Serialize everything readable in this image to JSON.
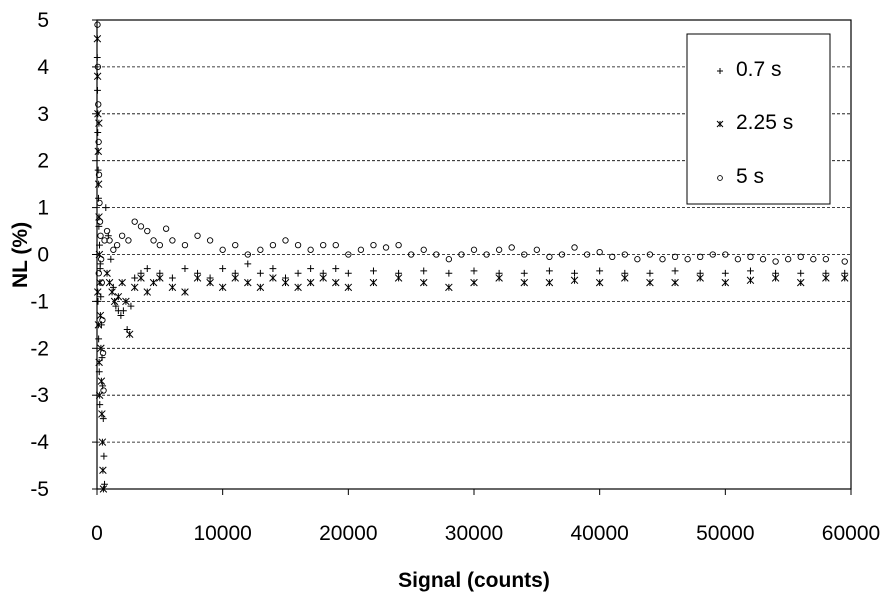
{
  "chart_data": {
    "type": "scatter",
    "title": "",
    "xlabel": "Signal (counts)",
    "ylabel": "NL (%)",
    "xlim": [
      0,
      60000
    ],
    "ylim": [
      -5,
      5
    ],
    "x_ticks": [
      "0",
      "10000",
      "20000",
      "30000",
      "40000",
      "50000",
      "60000"
    ],
    "y_ticks": [
      "5",
      "4",
      "3",
      "2",
      "1",
      "0",
      "-1",
      "-2",
      "-3",
      "-4",
      "-5"
    ],
    "grid": "horizontal dashed",
    "legend_position": "top-right",
    "series": [
      {
        "name": "0.7 s",
        "marker": "plus",
        "points": [
          [
            20,
            4.2
          ],
          [
            40,
            3.5
          ],
          [
            60,
            2.6
          ],
          [
            90,
            1.8
          ],
          [
            120,
            1.2
          ],
          [
            150,
            0.6
          ],
          [
            200,
            0.2
          ],
          [
            250,
            -0.3
          ],
          [
            300,
            -0.9
          ],
          [
            350,
            -1.5
          ],
          [
            400,
            -2.2
          ],
          [
            450,
            -2.8
          ],
          [
            500,
            -3.5
          ],
          [
            550,
            -4.3
          ],
          [
            600,
            -4.9
          ],
          [
            80,
            -1.0
          ],
          [
            130,
            -1.8
          ],
          [
            180,
            -2.5
          ],
          [
            220,
            -3.2
          ],
          [
            260,
            -0.2
          ],
          [
            700,
            1.0
          ],
          [
            900,
            0.4
          ],
          [
            1100,
            -0.1
          ],
          [
            1300,
            -0.7
          ],
          [
            1500,
            -1.1
          ],
          [
            1700,
            -1.2
          ],
          [
            1900,
            -1.3
          ],
          [
            2100,
            -1.2
          ],
          [
            2400,
            -1.6
          ],
          [
            2700,
            -1.1
          ],
          [
            3000,
            -0.5
          ],
          [
            3500,
            -0.4
          ],
          [
            4000,
            -0.3
          ],
          [
            5000,
            -0.4
          ],
          [
            6000,
            -0.5
          ],
          [
            7000,
            -0.3
          ],
          [
            8000,
            -0.4
          ],
          [
            9000,
            -0.5
          ],
          [
            10000,
            -0.3
          ],
          [
            11000,
            -0.4
          ],
          [
            12000,
            -0.2
          ],
          [
            13000,
            -0.4
          ],
          [
            14000,
            -0.3
          ],
          [
            15000,
            -0.5
          ],
          [
            16000,
            -0.4
          ],
          [
            17000,
            -0.3
          ],
          [
            18000,
            -0.4
          ],
          [
            19000,
            -0.3
          ],
          [
            20000,
            -0.4
          ],
          [
            22000,
            -0.35
          ],
          [
            24000,
            -0.4
          ],
          [
            26000,
            -0.35
          ],
          [
            28000,
            -0.4
          ],
          [
            30000,
            -0.35
          ],
          [
            32000,
            -0.4
          ],
          [
            34000,
            -0.4
          ],
          [
            36000,
            -0.35
          ],
          [
            38000,
            -0.4
          ],
          [
            40000,
            -0.35
          ],
          [
            42000,
            -0.4
          ],
          [
            44000,
            -0.4
          ],
          [
            46000,
            -0.35
          ],
          [
            48000,
            -0.4
          ],
          [
            50000,
            -0.4
          ],
          [
            52000,
            -0.35
          ],
          [
            54000,
            -0.4
          ],
          [
            56000,
            -0.4
          ],
          [
            58000,
            -0.4
          ],
          [
            59500,
            -0.4
          ]
        ]
      },
      {
        "name": "2.25 s",
        "marker": "asterisk",
        "points": [
          [
            30,
            4.6
          ],
          [
            50,
            3.8
          ],
          [
            70,
            3.0
          ],
          [
            100,
            2.2
          ],
          [
            130,
            1.5
          ],
          [
            160,
            0.8
          ],
          [
            190,
            0.0
          ],
          [
            230,
            -0.6
          ],
          [
            270,
            -1.3
          ],
          [
            310,
            -2.0
          ],
          [
            350,
            -2.7
          ],
          [
            390,
            -3.4
          ],
          [
            430,
            -4.0
          ],
          [
            470,
            -4.6
          ],
          [
            510,
            -5.0
          ],
          [
            110,
            -1.5
          ],
          [
            170,
            -2.3
          ],
          [
            210,
            -3.0
          ],
          [
            150,
            2.8
          ],
          [
            60,
            -0.8
          ],
          [
            800,
            -0.4
          ],
          [
            1000,
            -0.6
          ],
          [
            1200,
            -0.8
          ],
          [
            1400,
            -1.0
          ],
          [
            1700,
            -0.9
          ],
          [
            2000,
            -0.6
          ],
          [
            2300,
            -1.0
          ],
          [
            2600,
            -1.7
          ],
          [
            3000,
            -0.7
          ],
          [
            3500,
            -0.5
          ],
          [
            4000,
            -0.8
          ],
          [
            4500,
            -0.6
          ],
          [
            5000,
            -0.5
          ],
          [
            6000,
            -0.7
          ],
          [
            7000,
            -0.8
          ],
          [
            8000,
            -0.5
          ],
          [
            9000,
            -0.6
          ],
          [
            10000,
            -0.7
          ],
          [
            11000,
            -0.5
          ],
          [
            12000,
            -0.6
          ],
          [
            13000,
            -0.7
          ],
          [
            14000,
            -0.5
          ],
          [
            15000,
            -0.6
          ],
          [
            16000,
            -0.7
          ],
          [
            17000,
            -0.6
          ],
          [
            18000,
            -0.5
          ],
          [
            19000,
            -0.6
          ],
          [
            20000,
            -0.7
          ],
          [
            22000,
            -0.6
          ],
          [
            24000,
            -0.5
          ],
          [
            26000,
            -0.6
          ],
          [
            28000,
            -0.7
          ],
          [
            30000,
            -0.6
          ],
          [
            32000,
            -0.5
          ],
          [
            34000,
            -0.6
          ],
          [
            36000,
            -0.6
          ],
          [
            38000,
            -0.55
          ],
          [
            40000,
            -0.6
          ],
          [
            42000,
            -0.5
          ],
          [
            44000,
            -0.6
          ],
          [
            46000,
            -0.6
          ],
          [
            48000,
            -0.5
          ],
          [
            50000,
            -0.6
          ],
          [
            52000,
            -0.55
          ],
          [
            54000,
            -0.5
          ],
          [
            56000,
            -0.6
          ],
          [
            58000,
            -0.5
          ],
          [
            59500,
            -0.5
          ]
        ]
      },
      {
        "name": "5 s",
        "marker": "circle",
        "points": [
          [
            40,
            4.9
          ],
          [
            70,
            4.0
          ],
          [
            100,
            3.2
          ],
          [
            130,
            2.4
          ],
          [
            160,
            1.7
          ],
          [
            200,
            1.1
          ],
          [
            240,
            0.7
          ],
          [
            280,
            0.4
          ],
          [
            330,
            -0.1
          ],
          [
            380,
            -0.6
          ],
          [
            430,
            -1.4
          ],
          [
            480,
            -2.1
          ],
          [
            520,
            -2.9
          ],
          [
            140,
            -0.4
          ],
          [
            600,
            0.3
          ],
          [
            800,
            0.5
          ],
          [
            1000,
            0.3
          ],
          [
            1300,
            0.1
          ],
          [
            1600,
            0.2
          ],
          [
            2000,
            0.4
          ],
          [
            2500,
            0.3
          ],
          [
            3000,
            0.7
          ],
          [
            3500,
            0.6
          ],
          [
            4000,
            0.5
          ],
          [
            4500,
            0.3
          ],
          [
            5000,
            0.2
          ],
          [
            5500,
            0.55
          ],
          [
            6000,
            0.3
          ],
          [
            7000,
            0.2
          ],
          [
            8000,
            0.4
          ],
          [
            9000,
            0.3
          ],
          [
            10000,
            0.1
          ],
          [
            11000,
            0.2
          ],
          [
            12000,
            0.0
          ],
          [
            13000,
            0.1
          ],
          [
            14000,
            0.2
          ],
          [
            15000,
            0.3
          ],
          [
            16000,
            0.2
          ],
          [
            17000,
            0.1
          ],
          [
            18000,
            0.2
          ],
          [
            19000,
            0.2
          ],
          [
            20000,
            0.0
          ],
          [
            21000,
            0.1
          ],
          [
            22000,
            0.2
          ],
          [
            23000,
            0.15
          ],
          [
            24000,
            0.2
          ],
          [
            25000,
            0.0
          ],
          [
            26000,
            0.1
          ],
          [
            27000,
            0.0
          ],
          [
            28000,
            -0.1
          ],
          [
            29000,
            0.0
          ],
          [
            30000,
            0.1
          ],
          [
            31000,
            0.0
          ],
          [
            32000,
            0.1
          ],
          [
            33000,
            0.15
          ],
          [
            34000,
            0.0
          ],
          [
            35000,
            0.1
          ],
          [
            36000,
            -0.05
          ],
          [
            37000,
            0.0
          ],
          [
            38000,
            0.15
          ],
          [
            39000,
            0.0
          ],
          [
            40000,
            0.05
          ],
          [
            41000,
            -0.05
          ],
          [
            42000,
            0.0
          ],
          [
            43000,
            -0.1
          ],
          [
            44000,
            0.0
          ],
          [
            45000,
            -0.1
          ],
          [
            46000,
            -0.05
          ],
          [
            47000,
            -0.1
          ],
          [
            48000,
            -0.05
          ],
          [
            49000,
            0.0
          ],
          [
            50000,
            0.0
          ],
          [
            51000,
            -0.1
          ],
          [
            52000,
            -0.05
          ],
          [
            53000,
            -0.1
          ],
          [
            54000,
            -0.15
          ],
          [
            55000,
            -0.1
          ],
          [
            56000,
            -0.05
          ],
          [
            57000,
            -0.1
          ],
          [
            58000,
            -0.1
          ],
          [
            59500,
            -0.15
          ]
        ]
      }
    ]
  }
}
